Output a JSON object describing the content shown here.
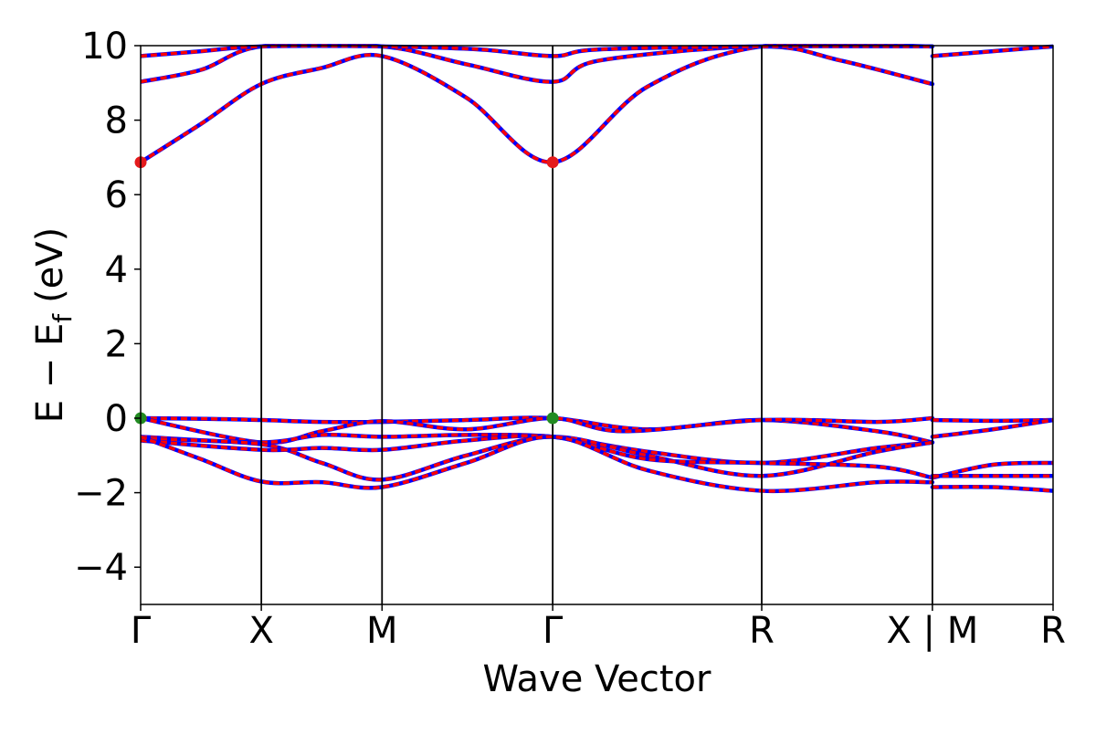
{
  "chart_data": {
    "type": "line",
    "title": "",
    "xlabel": "Wave Vector",
    "ylabel": "E − E_f (eV)",
    "ylabel_main": "E − E",
    "ylabel_sub": "f",
    "ylabel_unit": "(eV)",
    "ylim": [
      -5,
      10
    ],
    "yticks": [
      -4,
      -2,
      0,
      2,
      4,
      6,
      8,
      10
    ],
    "ytick_labels": [
      "−4",
      "−2",
      "0",
      "2",
      "4",
      "6",
      "8",
      "10"
    ],
    "xticks": [
      {
        "pos": 0.0,
        "label": "Γ"
      },
      {
        "pos": 0.5,
        "label": "X"
      },
      {
        "pos": 1.0,
        "label": "M"
      },
      {
        "pos": 1.707,
        "label": "Γ"
      },
      {
        "pos": 2.573,
        "label": "R"
      },
      {
        "pos": 3.28,
        "label": "X | M"
      },
      {
        "pos": 3.78,
        "label": "R"
      }
    ],
    "xlim": [
      0,
      3.78
    ],
    "break_at": 3.28,
    "grid": false,
    "line_colors": {
      "primary": "#ff0000",
      "dash": "#0000ff"
    },
    "extrema_markers": [
      {
        "x": 0.0,
        "y": 6.87,
        "color": "#e41a1c",
        "kind": "cbm"
      },
      {
        "x": 1.707,
        "y": 6.87,
        "color": "#e41a1c",
        "kind": "cbm"
      },
      {
        "x": 0.0,
        "y": 0.0,
        "color": "#228b22",
        "kind": "vbm"
      },
      {
        "x": 1.707,
        "y": 0.0,
        "color": "#228b22",
        "kind": "vbm"
      }
    ],
    "series": [
      {
        "segment": "main",
        "x": [
          0,
          0.25,
          0.5,
          0.75,
          1.0,
          1.35,
          1.707,
          2.1,
          2.573,
          3.28
        ],
        "y": [
          6.87,
          7.9,
          8.97,
          9.4,
          9.72,
          8.6,
          6.87,
          8.9,
          9.98,
          9.98
        ]
      },
      {
        "segment": "main",
        "x": [
          0,
          0.25,
          0.5,
          1.0,
          1.35,
          1.707,
          1.9,
          2.573,
          2.9,
          3.28
        ],
        "y": [
          9.03,
          9.35,
          9.98,
          9.98,
          9.5,
          9.03,
          9.6,
          9.98,
          9.6,
          8.97
        ]
      },
      {
        "segment": "main",
        "x": [
          0,
          0.25,
          0.5,
          1.0,
          1.4,
          1.707,
          1.9,
          2.573,
          3.28
        ],
        "y": [
          9.72,
          9.85,
          9.98,
          9.98,
          9.9,
          9.72,
          9.9,
          9.98,
          9.98
        ]
      },
      {
        "segment": "main",
        "x": [
          0,
          0.3,
          0.5,
          0.75,
          1.0,
          1.35,
          1.707,
          2.1,
          2.573,
          3.05,
          3.28
        ],
        "y": [
          0.0,
          -0.02,
          -0.05,
          -0.1,
          -0.1,
          -0.05,
          0.0,
          -0.3,
          -0.05,
          -0.35,
          -0.65
        ]
      },
      {
        "segment": "main",
        "x": [
          0,
          0.5,
          0.75,
          1.0,
          1.35,
          1.707,
          2.0,
          2.573,
          3.05,
          3.28
        ],
        "y": [
          0.0,
          -0.65,
          -0.35,
          -0.08,
          -0.3,
          0.0,
          -0.35,
          -0.05,
          -0.1,
          0.0
        ]
      },
      {
        "segment": "main",
        "x": [
          0,
          0.5,
          0.75,
          1.0,
          1.35,
          1.707,
          2.1,
          2.573,
          3.05,
          3.28
        ],
        "y": [
          -0.5,
          -0.65,
          -0.45,
          -0.5,
          -0.45,
          -0.5,
          -0.9,
          -1.2,
          -0.8,
          -0.65
        ]
      },
      {
        "segment": "main",
        "x": [
          0,
          0.5,
          0.75,
          1.0,
          1.35,
          1.707,
          2.1,
          2.573,
          3.05,
          3.28
        ],
        "y": [
          -0.55,
          -0.7,
          -1.2,
          -1.65,
          -1.0,
          -0.5,
          -1.0,
          -1.55,
          -0.9,
          -0.65
        ]
      },
      {
        "segment": "main",
        "x": [
          0,
          0.5,
          0.75,
          1.0,
          1.35,
          1.707,
          2.1,
          2.573,
          3.05,
          3.28
        ],
        "y": [
          -0.6,
          -0.85,
          -0.8,
          -0.85,
          -0.6,
          -0.5,
          -1.1,
          -1.2,
          -1.3,
          -1.6
        ]
      },
      {
        "segment": "main",
        "x": [
          0,
          0.25,
          0.5,
          0.75,
          1.0,
          1.35,
          1.707,
          2.1,
          2.573,
          3.05,
          3.28
        ],
        "y": [
          -0.5,
          -1.1,
          -1.7,
          -1.72,
          -1.85,
          -1.2,
          -0.5,
          -1.4,
          -1.95,
          -1.72,
          -1.72
        ]
      },
      {
        "segment": "tail",
        "x": [
          3.28,
          3.53,
          3.78
        ],
        "y": [
          9.72,
          9.85,
          9.98
        ]
      },
      {
        "segment": "tail",
        "x": [
          3.28,
          3.53,
          3.78
        ],
        "y": [
          -0.05,
          -0.07,
          -0.05
        ]
      },
      {
        "segment": "tail",
        "x": [
          3.28,
          3.53,
          3.78
        ],
        "y": [
          -0.5,
          -0.3,
          -0.05
        ]
      },
      {
        "segment": "tail",
        "x": [
          3.28,
          3.53,
          3.78
        ],
        "y": [
          -1.6,
          -1.25,
          -1.2
        ]
      },
      {
        "segment": "tail",
        "x": [
          3.28,
          3.53,
          3.78
        ],
        "y": [
          -1.55,
          -1.55,
          -1.55
        ]
      },
      {
        "segment": "tail",
        "x": [
          3.28,
          3.53,
          3.78
        ],
        "y": [
          -1.85,
          -1.85,
          -1.95
        ]
      }
    ]
  }
}
